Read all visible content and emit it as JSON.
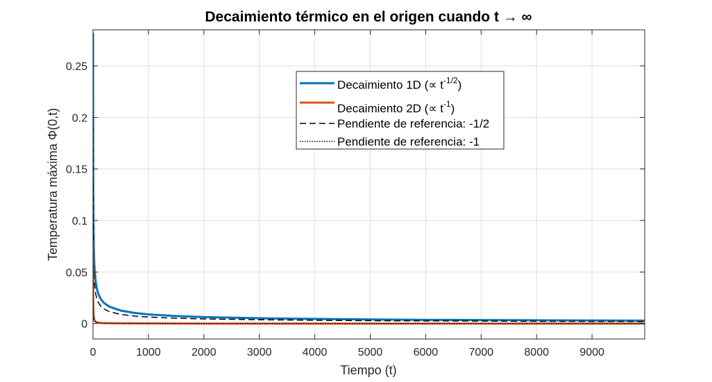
{
  "chart_data": {
    "type": "line",
    "title": "Decaimiento térmico en el origen cuando t → ∞",
    "xlabel": "Tiempo (t)",
    "ylabel": "Temperatura máxima Φ(0,t)",
    "xlim": [
      0,
      9950
    ],
    "ylim": [
      -0.015,
      0.285
    ],
    "xticks": [
      0,
      1000,
      2000,
      3000,
      4000,
      5000,
      6000,
      7000,
      8000,
      9000
    ],
    "xtick_labels": [
      "0",
      "1000",
      "2000",
      "3000",
      "4000",
      "5000",
      "6000",
      "7000",
      "8000",
      "9000"
    ],
    "yticks": [
      0,
      0.05,
      0.1,
      0.15,
      0.2,
      0.25
    ],
    "ytick_labels": [
      "0",
      "0.05",
      "0.1",
      "0.15",
      "0.2",
      "0.25"
    ],
    "grid": true,
    "legend_position": "top-center",
    "series": [
      {
        "name": "Decaimiento 1D (∝ t^-1/2)",
        "color": "#0072BD",
        "style": "solid",
        "x": [
          1,
          2,
          5,
          10,
          20,
          30,
          50,
          75,
          100,
          150,
          200,
          300,
          500,
          750,
          1000,
          1500,
          2000,
          3000,
          4000,
          5000,
          6000,
          7000,
          8000,
          9000,
          9950
        ],
        "y": [
          0.2821,
          0.1995,
          0.1262,
          0.0892,
          0.0631,
          0.0515,
          0.0399,
          0.0326,
          0.0282,
          0.023,
          0.0199,
          0.0163,
          0.0126,
          0.0103,
          0.0089,
          0.0073,
          0.0063,
          0.0052,
          0.0045,
          0.004,
          0.0036,
          0.0034,
          0.0032,
          0.003,
          0.0028
        ]
      },
      {
        "name": "Decaimiento 2D (∝ t^-1)",
        "color": "#D95319",
        "style": "solid",
        "x": [
          1,
          2,
          3,
          5,
          10,
          20,
          30,
          50,
          75,
          100,
          150,
          200,
          300,
          500,
          1000,
          2000,
          4000,
          6000,
          8000,
          9950
        ],
        "y": [
          0.0796,
          0.0398,
          0.0265,
          0.0159,
          0.008,
          0.004,
          0.0027,
          0.0016,
          0.0011,
          0.0008,
          0.0005,
          0.0004,
          0.0003,
          0.0002,
          0.0001,
          0.0,
          0.0,
          0.0,
          0.0,
          0.0
        ]
      },
      {
        "name": "Pendiente de referencia: -1/2",
        "color": "#000000",
        "style": "dashed",
        "x": [
          1,
          2,
          5,
          10,
          20,
          30,
          50,
          75,
          100,
          150,
          200,
          300,
          500,
          750,
          1000,
          1500,
          2000,
          3000,
          4000,
          5000,
          6000,
          7000,
          8000,
          9000,
          9950
        ],
        "y": [
          0.2,
          0.1414,
          0.0894,
          0.0632,
          0.0447,
          0.0365,
          0.0283,
          0.0231,
          0.02,
          0.0163,
          0.0141,
          0.0115,
          0.0089,
          0.0073,
          0.0063,
          0.0052,
          0.0045,
          0.0037,
          0.0032,
          0.0028,
          0.0026,
          0.0024,
          0.0022,
          0.0021,
          0.002
        ]
      },
      {
        "name": "Pendiente de referencia: -1",
        "color": "#000000",
        "style": "dotted",
        "x": [
          1,
          2,
          3,
          5,
          10,
          20,
          30,
          50,
          75,
          100,
          150,
          200,
          300,
          500,
          1000,
          2000,
          4000,
          6000,
          8000,
          9950
        ],
        "y": [
          0.08,
          0.04,
          0.0267,
          0.016,
          0.008,
          0.004,
          0.0027,
          0.0016,
          0.0011,
          0.0008,
          0.0005,
          0.0004,
          0.0003,
          0.0002,
          0.0001,
          0.0,
          0.0,
          0.0,
          0.0,
          0.0
        ]
      }
    ]
  }
}
